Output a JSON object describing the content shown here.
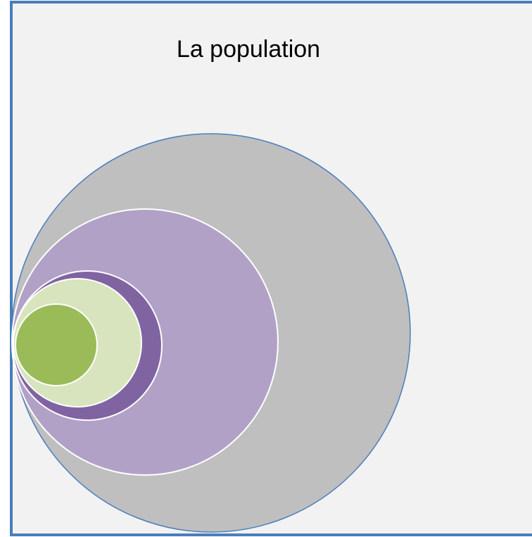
{
  "title": "La population"
}
